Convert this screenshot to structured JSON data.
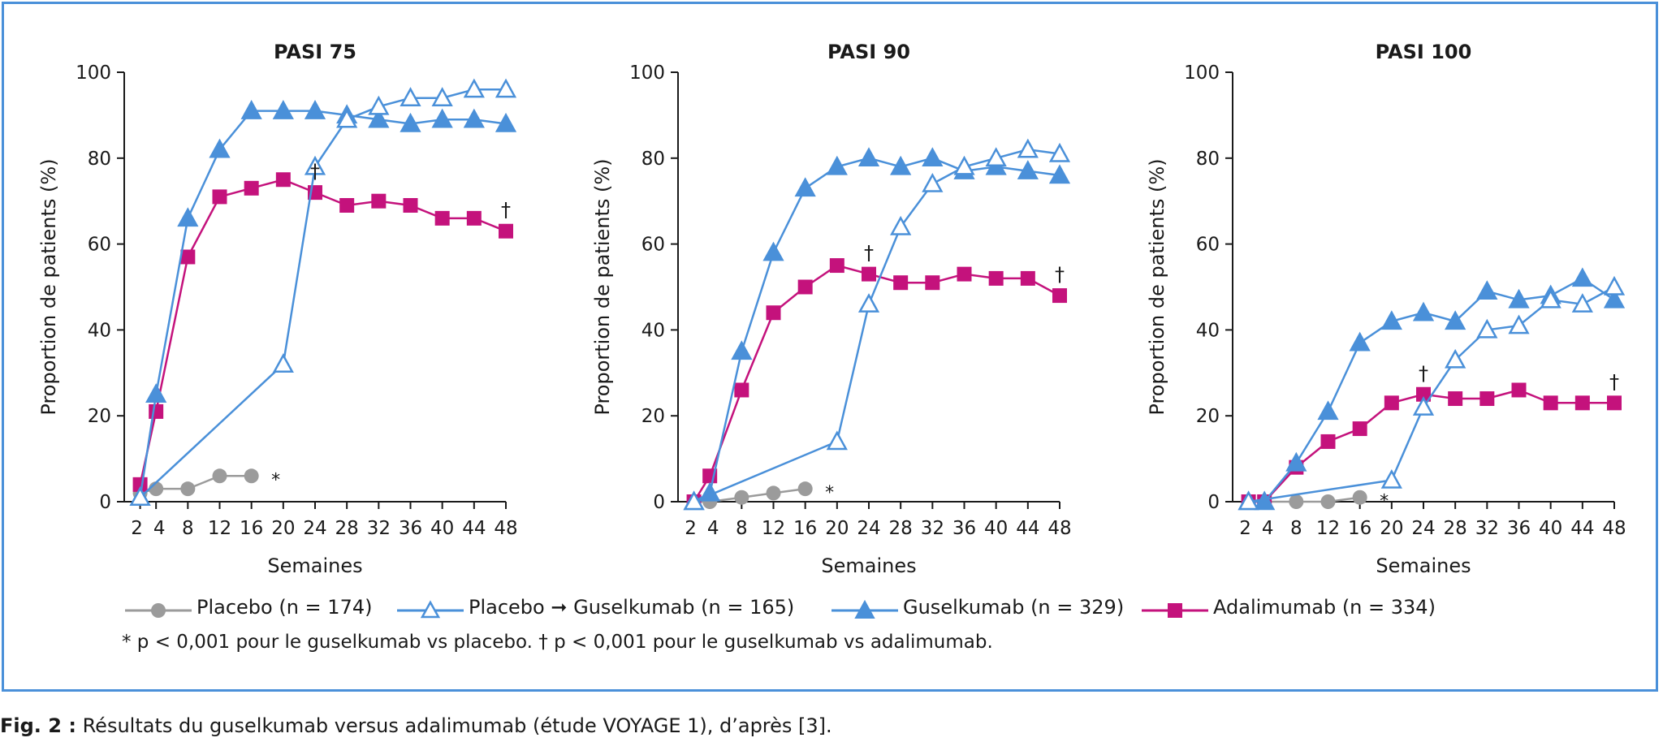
{
  "chart_data": [
    {
      "type": "line",
      "title": "PASI 75",
      "xlabel": "Semaines",
      "ylabel": "Proportion de patients (%)",
      "xticks": [
        2,
        4,
        8,
        12,
        16,
        20,
        24,
        28,
        32,
        36,
        40,
        44,
        48
      ],
      "yticks": [
        0,
        20,
        40,
        60,
        80,
        100
      ],
      "xlim": [
        0,
        48
      ],
      "ylim": [
        0,
        100
      ],
      "series": [
        {
          "name": "Placebo (n = 174)",
          "x": [
            2,
            4,
            8,
            12,
            16
          ],
          "y": [
            2,
            3,
            3,
            6,
            6
          ]
        },
        {
          "name": "Placebo ➞ Guselkumab (n = 165)",
          "x": [
            2,
            20,
            24,
            28,
            32,
            36,
            40,
            44,
            48
          ],
          "y": [
            1,
            32,
            78,
            89,
            92,
            94,
            94,
            96,
            96
          ]
        },
        {
          "name": "Guselkumab (n = 329)",
          "x": [
            2,
            4,
            8,
            12,
            16,
            20,
            24,
            28,
            32,
            36,
            40,
            44,
            48
          ],
          "y": [
            1,
            25,
            66,
            82,
            91,
            91,
            91,
            90,
            89,
            88,
            89,
            89,
            88
          ]
        },
        {
          "name": "Adalimumab (n = 334)",
          "x": [
            2,
            4,
            8,
            12,
            16,
            20,
            24,
            28,
            32,
            36,
            40,
            44,
            48
          ],
          "y": [
            4,
            21,
            57,
            71,
            73,
            75,
            72,
            69,
            70,
            69,
            66,
            66,
            63
          ]
        }
      ],
      "annotations": [
        {
          "text": "*",
          "x": 16,
          "y": 6
        },
        {
          "text": "†",
          "x": 24,
          "y": 72
        },
        {
          "text": "†",
          "x": 48,
          "y": 63
        }
      ]
    },
    {
      "type": "line",
      "title": "PASI 90",
      "xlabel": "Semaines",
      "ylabel": "Proportion de patients (%)",
      "xticks": [
        2,
        4,
        8,
        12,
        16,
        20,
        24,
        28,
        32,
        36,
        40,
        44,
        48
      ],
      "yticks": [
        0,
        20,
        40,
        60,
        80,
        100
      ],
      "xlim": [
        0,
        48
      ],
      "ylim": [
        0,
        100
      ],
      "series": [
        {
          "name": "Placebo (n = 174)",
          "x": [
            2,
            4,
            8,
            12,
            16
          ],
          "y": [
            0,
            0,
            1,
            2,
            3
          ]
        },
        {
          "name": "Placebo ➞ Guselkumab (n = 165)",
          "x": [
            2,
            20,
            24,
            28,
            32,
            36,
            40,
            44,
            48
          ],
          "y": [
            0,
            14,
            46,
            64,
            74,
            78,
            80,
            82,
            81
          ]
        },
        {
          "name": "Guselkumab (n = 329)",
          "x": [
            2,
            4,
            8,
            12,
            16,
            20,
            24,
            28,
            32,
            36,
            40,
            44,
            48
          ],
          "y": [
            0,
            2,
            35,
            58,
            73,
            78,
            80,
            78,
            80,
            77,
            78,
            77,
            76
          ]
        },
        {
          "name": "Adalimumab (n = 334)",
          "x": [
            2,
            4,
            8,
            12,
            16,
            20,
            24,
            28,
            32,
            36,
            40,
            44,
            48
          ],
          "y": [
            0,
            6,
            26,
            44,
            50,
            55,
            53,
            51,
            51,
            53,
            52,
            52,
            48
          ]
        }
      ],
      "annotations": [
        {
          "text": "*",
          "x": 16,
          "y": 3
        },
        {
          "text": "†",
          "x": 24,
          "y": 53
        },
        {
          "text": "†",
          "x": 48,
          "y": 48
        }
      ]
    },
    {
      "type": "line",
      "title": "PASI 100",
      "xlabel": "Semaines",
      "ylabel": "Proportion de patients (%)",
      "xticks": [
        2,
        4,
        8,
        12,
        16,
        20,
        24,
        28,
        32,
        36,
        40,
        44,
        48
      ],
      "yticks": [
        0,
        20,
        40,
        60,
        80,
        100
      ],
      "xlim": [
        0,
        48
      ],
      "ylim": [
        0,
        100
      ],
      "series": [
        {
          "name": "Placebo (n = 174)",
          "x": [
            2,
            4,
            8,
            12,
            16
          ],
          "y": [
            0,
            0,
            0,
            0,
            1
          ]
        },
        {
          "name": "Placebo ➞ Guselkumab (n = 165)",
          "x": [
            2,
            20,
            24,
            28,
            32,
            36,
            40,
            44,
            48
          ],
          "y": [
            0,
            5,
            22,
            33,
            40,
            41,
            47,
            46,
            50
          ]
        },
        {
          "name": "Guselkumab (n = 329)",
          "x": [
            2,
            4,
            8,
            12,
            16,
            20,
            24,
            28,
            32,
            36,
            40,
            44,
            48
          ],
          "y": [
            0,
            0,
            9,
            21,
            37,
            42,
            44,
            42,
            49,
            47,
            48,
            52,
            47
          ]
        },
        {
          "name": "Adalimumab (n = 334)",
          "x": [
            2,
            4,
            8,
            12,
            16,
            20,
            24,
            28,
            32,
            36,
            40,
            44,
            48
          ],
          "y": [
            0,
            0,
            8,
            14,
            17,
            23,
            25,
            24,
            24,
            26,
            23,
            23,
            23
          ]
        }
      ],
      "annotations": [
        {
          "text": "*",
          "x": 16,
          "y": 1
        },
        {
          "text": "†",
          "x": 24,
          "y": 25
        },
        {
          "text": "†",
          "x": 48,
          "y": 23
        }
      ]
    }
  ],
  "legend": {
    "placement": "bottom",
    "items": [
      {
        "label": "Placebo (n = 174)",
        "marker": "circle-filled",
        "color": "#9b9b9b"
      },
      {
        "label": "Placebo ➞ Guselkumab (n = 165)",
        "marker": "triangle-open",
        "color": "#4a90d9"
      },
      {
        "label": "Guselkumab (n = 329)",
        "marker": "triangle-filled",
        "color": "#4a90d9"
      },
      {
        "label": "Adalimumab (n = 334)",
        "marker": "square-filled",
        "color": "#c4127c"
      }
    ]
  },
  "footnote": "* p < 0,001 pour le guselkumab vs placebo. † p < 0,001 pour le guselkumab vs adalimumab.",
  "caption": {
    "label": "Fig. 2 :",
    "text": "Résultats du guselkumab versus adalimumab (étude VOYAGE 1), d’après [3]."
  },
  "colors": {
    "frame": "#4a90d9",
    "placebo": "#9b9b9b",
    "guselkumab": "#4a90d9",
    "adalimumab": "#c4127c"
  }
}
